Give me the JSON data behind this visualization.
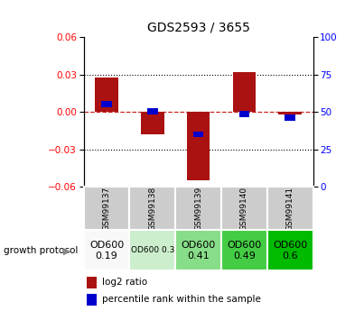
{
  "title": "GDS2593 / 3655",
  "samples": [
    "GSM99137",
    "GSM99138",
    "GSM99139",
    "GSM99140",
    "GSM99141"
  ],
  "log2_ratio": [
    0.028,
    -0.018,
    -0.055,
    0.032,
    -0.002
  ],
  "percentile_rank": [
    55,
    50.5,
    35,
    48.5,
    46
  ],
  "ylim_left": [
    -0.06,
    0.06
  ],
  "ylim_right": [
    0,
    100
  ],
  "yticks_left": [
    -0.06,
    -0.03,
    0,
    0.03,
    0.06
  ],
  "yticks_right": [
    0,
    25,
    50,
    75,
    100
  ],
  "bar_color_red": "#aa1111",
  "bar_color_blue": "#0000cc",
  "zero_line_color": "#cc2222",
  "protocol_labels": [
    "OD600\n0.19",
    "OD600 0.3",
    "OD600\n0.41",
    "OD600\n0.49",
    "OD600\n0.6"
  ],
  "protocol_colors": [
    "#f8f8f8",
    "#cceecc",
    "#88dd88",
    "#44cc44",
    "#00bb00"
  ],
  "protocol_font_sizes": [
    8,
    6.5,
    8,
    8,
    8
  ],
  "sample_bg_color": "#cccccc",
  "growth_protocol_label": "growth protocol",
  "legend_log2": "log2 ratio",
  "legend_pct": "percentile rank within the sample",
  "bar_width": 0.5
}
